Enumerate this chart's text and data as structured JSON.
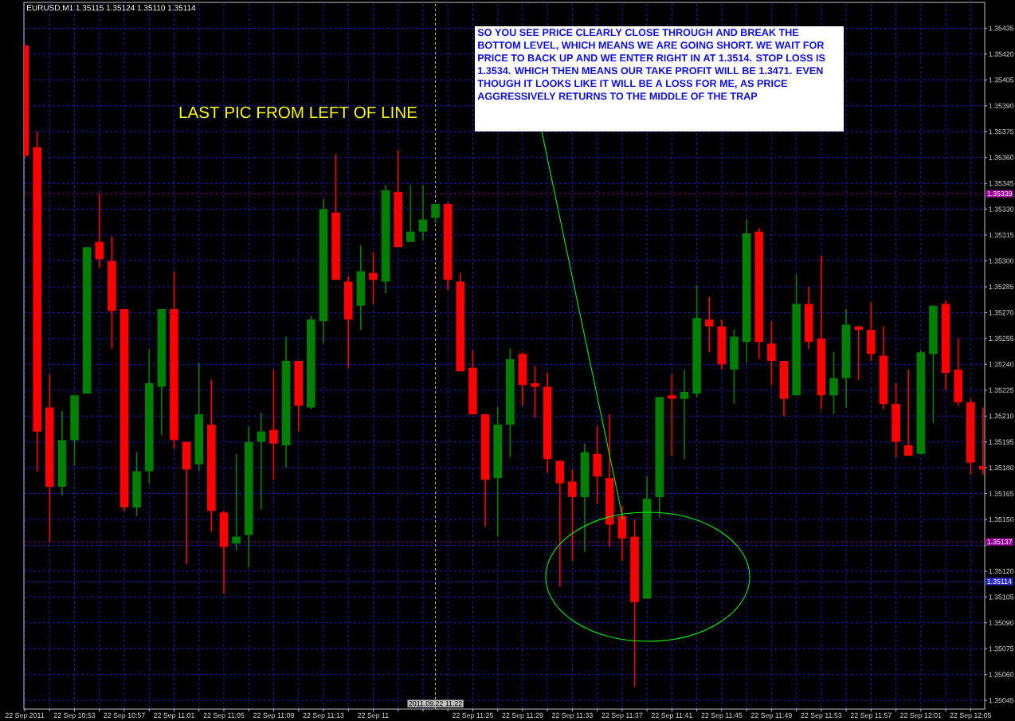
{
  "chart_data": {
    "type": "candlestick",
    "title": "EURUSD,M1 1.35115 1.35124 1.35110 1.35114",
    "x": [
      "2011-09-22T10:49",
      "2011-09-22T10:50",
      "2011-09-22T10:51",
      "2011-09-22T10:52",
      "2011-09-22T10:53",
      "2011-09-22T10:54",
      "2011-09-22T10:55",
      "2011-09-22T10:56",
      "2011-09-22T10:57",
      "2011-09-22T10:58",
      "2011-09-22T10:59",
      "2011-09-22T11:00",
      "2011-09-22T11:01",
      "2011-09-22T11:02",
      "2011-09-22T11:03",
      "2011-09-22T11:04",
      "2011-09-22T11:05",
      "2011-09-22T11:06",
      "2011-09-22T11:07",
      "2011-09-22T11:08",
      "2011-09-22T11:09",
      "2011-09-22T11:10",
      "2011-09-22T11:11",
      "2011-09-22T11:12",
      "2011-09-22T11:13",
      "2011-09-22T11:14",
      "2011-09-22T11:15",
      "2011-09-22T11:16",
      "2011-09-22T11:17",
      "2011-09-22T11:18",
      "2011-09-22T11:19",
      "2011-09-22T11:20",
      "2011-09-22T11:21",
      "2011-09-22T11:22",
      "2011-09-22T11:23",
      "2011-09-22T11:24",
      "2011-09-22T11:25",
      "2011-09-22T11:26",
      "2011-09-22T11:27",
      "2011-09-22T11:28",
      "2011-09-22T11:29",
      "2011-09-22T11:30",
      "2011-09-22T11:31",
      "2011-09-22T11:32",
      "2011-09-22T11:33",
      "2011-09-22T11:34",
      "2011-09-22T11:35",
      "2011-09-22T11:36",
      "2011-09-22T11:37",
      "2011-09-22T11:38",
      "2011-09-22T11:39",
      "2011-09-22T11:40",
      "2011-09-22T11:41",
      "2011-09-22T11:42",
      "2011-09-22T11:43",
      "2011-09-22T11:44",
      "2011-09-22T11:45",
      "2011-09-22T11:46",
      "2011-09-22T11:47",
      "2011-09-22T11:48",
      "2011-09-22T11:49",
      "2011-09-22T11:50",
      "2011-09-22T11:51",
      "2011-09-22T11:52",
      "2011-09-22T11:53",
      "2011-09-22T11:54",
      "2011-09-22T11:55",
      "2011-09-22T11:56",
      "2011-09-22T11:57",
      "2011-09-22T11:58",
      "2011-09-22T11:59",
      "2011-09-22T12:00",
      "2011-09-22T12:01",
      "2011-09-22T12:02",
      "2011-09-22T12:03",
      "2011-09-22T12:04",
      "2011-09-22T12:05",
      "2011-09-22T12:06"
    ],
    "ohlc": [
      [
        1.35425,
        1.35425,
        1.3536,
        1.35361
      ],
      [
        1.35366,
        1.35375,
        1.35178,
        1.35201
      ],
      [
        1.35215,
        1.35234,
        1.35137,
        1.35169
      ],
      [
        1.35169,
        1.35213,
        1.35164,
        1.35196
      ],
      [
        1.35196,
        1.35222,
        1.35181,
        1.35222
      ],
      [
        1.35223,
        1.35308,
        1.35223,
        1.35308
      ],
      [
        1.35311,
        1.35339,
        1.35296,
        1.35301
      ],
      [
        1.353,
        1.35314,
        1.35249,
        1.35271
      ],
      [
        1.35272,
        1.35272,
        1.35155,
        1.35157
      ],
      [
        1.35157,
        1.35189,
        1.35152,
        1.35178
      ],
      [
        1.35178,
        1.35249,
        1.35171,
        1.35229
      ],
      [
        1.35227,
        1.35272,
        1.35199,
        1.35272
      ],
      [
        1.35272,
        1.35294,
        1.35191,
        1.35196
      ],
      [
        1.35195,
        1.35195,
        1.35124,
        1.35179
      ],
      [
        1.35182,
        1.35241,
        1.35178,
        1.35211
      ],
      [
        1.35205,
        1.35231,
        1.35143,
        1.35155
      ],
      [
        1.35154,
        1.35155,
        1.35107,
        1.35134
      ],
      [
        1.35136,
        1.35188,
        1.35132,
        1.3514
      ],
      [
        1.35141,
        1.35204,
        1.35122,
        1.35195
      ],
      [
        1.35195,
        1.35212,
        1.35156,
        1.35201
      ],
      [
        1.35202,
        1.35237,
        1.35173,
        1.35194
      ],
      [
        1.35193,
        1.35256,
        1.3518,
        1.35242
      ],
      [
        1.35242,
        1.35242,
        1.35201,
        1.35216
      ],
      [
        1.35215,
        1.35268,
        1.35214,
        1.35266
      ],
      [
        1.35265,
        1.35336,
        1.35252,
        1.3533
      ],
      [
        1.35328,
        1.35362,
        1.35289,
        1.35289
      ],
      [
        1.35288,
        1.35291,
        1.35238,
        1.35266
      ],
      [
        1.35274,
        1.35309,
        1.3526,
        1.35294
      ],
      [
        1.35293,
        1.35305,
        1.35275,
        1.35289
      ],
      [
        1.35288,
        1.35344,
        1.35281,
        1.35341
      ],
      [
        1.3534,
        1.35364,
        1.35308,
        1.35308
      ],
      [
        1.35311,
        1.35344,
        1.35311,
        1.35317
      ],
      [
        1.35317,
        1.35344,
        1.35312,
        1.35324
      ],
      [
        1.35325,
        1.35333,
        1.35322,
        1.35333
      ],
      [
        1.35333,
        1.35334,
        1.35283,
        1.35289
      ],
      [
        1.35288,
        1.35293,
        1.35236,
        1.35236
      ],
      [
        1.35238,
        1.35248,
        1.35211,
        1.35211
      ],
      [
        1.35211,
        1.35211,
        1.35146,
        1.35173
      ],
      [
        1.35174,
        1.35215,
        1.3514,
        1.35205
      ],
      [
        1.35205,
        1.35249,
        1.35186,
        1.35243
      ],
      [
        1.35246,
        1.35247,
        1.35216,
        1.35228
      ],
      [
        1.35229,
        1.35239,
        1.35209,
        1.35227
      ],
      [
        1.35227,
        1.35235,
        1.35177,
        1.35185
      ],
      [
        1.35184,
        1.35184,
        1.35111,
        1.35171
      ],
      [
        1.35172,
        1.35179,
        1.35126,
        1.35163
      ],
      [
        1.35163,
        1.35194,
        1.35131,
        1.35189
      ],
      [
        1.35188,
        1.35204,
        1.35159,
        1.35175
      ],
      [
        1.35174,
        1.35211,
        1.35134,
        1.35147
      ],
      [
        1.35152,
        1.35158,
        1.35126,
        1.35139
      ],
      [
        1.3514,
        1.3515,
        1.35053,
        1.35102
      ],
      [
        1.35104,
        1.35175,
        1.35104,
        1.35162
      ],
      [
        1.35163,
        1.35221,
        1.35151,
        1.35221
      ],
      [
        1.35222,
        1.35234,
        1.35187,
        1.3522
      ],
      [
        1.3522,
        1.35237,
        1.35185,
        1.35224
      ],
      [
        1.35223,
        1.35286,
        1.35221,
        1.35267
      ],
      [
        1.35266,
        1.35279,
        1.35247,
        1.35262
      ],
      [
        1.35262,
        1.35266,
        1.35237,
        1.3524
      ],
      [
        1.35237,
        1.3526,
        1.35217,
        1.35256
      ],
      [
        1.35253,
        1.35324,
        1.35241,
        1.35316
      ],
      [
        1.35317,
        1.35319,
        1.35243,
        1.35253
      ],
      [
        1.35252,
        1.35265,
        1.35228,
        1.35242
      ],
      [
        1.35242,
        1.35242,
        1.3521,
        1.3522
      ],
      [
        1.35222,
        1.35292,
        1.35222,
        1.35275
      ],
      [
        1.35275,
        1.35285,
        1.35249,
        1.35253
      ],
      [
        1.35255,
        1.35303,
        1.35214,
        1.35222
      ],
      [
        1.35222,
        1.35247,
        1.35211,
        1.35232
      ],
      [
        1.35232,
        1.35272,
        1.35215,
        1.35263
      ],
      [
        1.35262,
        1.35262,
        1.35231,
        1.3526
      ],
      [
        1.3526,
        1.35276,
        1.35242,
        1.35246
      ],
      [
        1.35245,
        1.35262,
        1.35214,
        1.35217
      ],
      [
        1.35217,
        1.35229,
        1.35186,
        1.35195
      ],
      [
        1.35193,
        1.35237,
        1.35187,
        1.35187
      ],
      [
        1.35188,
        1.35248,
        1.35188,
        1.35247
      ],
      [
        1.35246,
        1.35274,
        1.35206,
        1.35274
      ],
      [
        1.35275,
        1.35277,
        1.35225,
        1.35235
      ],
      [
        1.35237,
        1.35255,
        1.35216,
        1.35218
      ],
      [
        1.35218,
        1.3522,
        1.35176,
        1.35183
      ],
      [
        1.35181,
        1.35215,
        1.35176,
        1.35179
      ]
    ],
    "colors": [
      "#ff0000",
      "#ff0000",
      "#ff0000",
      "#008000",
      "#008000",
      "#008000",
      "#ff0000",
      "#ff0000",
      "#ff0000",
      "#008000",
      "#008000",
      "#008000",
      "#ff0000",
      "#ff0000",
      "#008000",
      "#ff0000",
      "#ff0000",
      "#008000",
      "#008000",
      "#008000",
      "#ff0000",
      "#008000",
      "#ff0000",
      "#008000",
      "#008000",
      "#ff0000",
      "#ff0000",
      "#008000",
      "#ff0000",
      "#008000",
      "#ff0000",
      "#008000",
      "#008000",
      "#008000",
      "#ff0000",
      "#ff0000",
      "#ff0000",
      "#ff0000",
      "#008000",
      "#008000",
      "#ff0000",
      "#ff0000",
      "#ff0000",
      "#ff0000",
      "#ff0000",
      "#008000",
      "#ff0000",
      "#ff0000",
      "#ff0000",
      "#ff0000",
      "#008000",
      "#008000",
      "#ff0000",
      "#008000",
      "#008000",
      "#ff0000",
      "#ff0000",
      "#008000",
      "#008000",
      "#ff0000",
      "#ff0000",
      "#ff0000",
      "#008000",
      "#ff0000",
      "#ff0000",
      "#008000",
      "#008000",
      "#ff0000",
      "#ff0000",
      "#ff0000",
      "#ff0000",
      "#ff0000",
      "#008000",
      "#008000",
      "#ff0000",
      "#ff0000",
      "#ff0000",
      "#ff0000"
    ],
    "xlim": [
      "2011-09-22T10:48:56",
      "2011-09-22T12:06:08"
    ],
    "ylim": [
      1.3504,
      1.3545
    ],
    "xticks": [
      {
        "value": "2011-09-22T10:49",
        "label": "22 Sep 2011"
      },
      {
        "value": "2011-09-22T10:51",
        "label": null
      },
      {
        "value": "2011-09-22T10:53",
        "label": "22 Sep 10:53"
      },
      {
        "value": "2011-09-22T10:55",
        "label": null
      },
      {
        "value": "2011-09-22T10:57",
        "label": "22 Sep 10:57"
      },
      {
        "value": "2011-09-22T10:59",
        "label": null
      },
      {
        "value": "2011-09-22T11:01",
        "label": "22 Sep 11:01"
      },
      {
        "value": "2011-09-22T11:03",
        "label": null
      },
      {
        "value": "2011-09-22T11:05",
        "label": "22 Sep 11:05"
      },
      {
        "value": "2011-09-22T11:07",
        "label": null
      },
      {
        "value": "2011-09-22T11:09",
        "label": "22 Sep 11:09"
      },
      {
        "value": "2011-09-22T11:11",
        "label": null
      },
      {
        "value": "2011-09-22T11:13",
        "label": "22 Sep 11:13"
      },
      {
        "value": "2011-09-22T11:15",
        "label": null
      },
      {
        "value": "2011-09-22T11:17",
        "label": "22 Sep 11"
      },
      {
        "value": "2011-09-22T11:19",
        "label": null
      },
      {
        "value": "2011-09-22T11:21",
        "label": null
      },
      {
        "value": "2011-09-22T11:23",
        "label": null
      },
      {
        "value": "2011-09-22T11:25",
        "label": "22 Sep 11:25"
      },
      {
        "value": "2011-09-22T11:27",
        "label": null
      },
      {
        "value": "2011-09-22T11:29",
        "label": "22 Sep 11:29"
      },
      {
        "value": "2011-09-22T11:31",
        "label": null
      },
      {
        "value": "2011-09-22T11:33",
        "label": "22 Sep 11:33"
      },
      {
        "value": "2011-09-22T11:35",
        "label": null
      },
      {
        "value": "2011-09-22T11:37",
        "label": "22 Sep 11:37"
      },
      {
        "value": "2011-09-22T11:39",
        "label": null
      },
      {
        "value": "2011-09-22T11:41",
        "label": "22 Sep 11:41"
      },
      {
        "value": "2011-09-22T11:43",
        "label": null
      },
      {
        "value": "2011-09-22T11:45",
        "label": "22 Sep 11:45"
      },
      {
        "value": "2011-09-22T11:47",
        "label": null
      },
      {
        "value": "2011-09-22T11:49",
        "label": "22 Sep 11:49"
      },
      {
        "value": "2011-09-22T11:51",
        "label": null
      },
      {
        "value": "2011-09-22T11:53",
        "label": "22 Sep 11:53"
      },
      {
        "value": "2011-09-22T11:55",
        "label": null
      },
      {
        "value": "2011-09-22T11:57",
        "label": "22 Sep 11:57"
      },
      {
        "value": "2011-09-22T11:59",
        "label": null
      },
      {
        "value": "2011-09-22T12:01",
        "label": "22 Sep 12:01"
      },
      {
        "value": "2011-09-22T12:03",
        "label": null
      },
      {
        "value": "2011-09-22T12:05",
        "label": "22 Sep 12:05"
      }
    ],
    "yticks": [
      {
        "value": 1.35045,
        "label": "1.35045"
      },
      {
        "value": 1.3506,
        "label": "1.35060"
      },
      {
        "value": 1.35075,
        "label": "1.35075"
      },
      {
        "value": 1.3509,
        "label": "1.35090"
      },
      {
        "value": 1.35105,
        "label": "1.35105"
      },
      {
        "value": 1.3512,
        "label": "1.35120"
      },
      {
        "value": 1.35135,
        "label": null
      },
      {
        "value": 1.3515,
        "label": "1.35150"
      },
      {
        "value": 1.35165,
        "label": "1.35165"
      },
      {
        "value": 1.3518,
        "label": "1.35180"
      },
      {
        "value": 1.35195,
        "label": "1.35195"
      },
      {
        "value": 1.3521,
        "label": "1.35210"
      },
      {
        "value": 1.35225,
        "label": "1.35225"
      },
      {
        "value": 1.3524,
        "label": "1.35240"
      },
      {
        "value": 1.35255,
        "label": "1.35255"
      },
      {
        "value": 1.3527,
        "label": "1.35270"
      },
      {
        "value": 1.35285,
        "label": "1.35285"
      },
      {
        "value": 1.353,
        "label": "1.35300"
      },
      {
        "value": 1.35315,
        "label": "1.35315"
      },
      {
        "value": 1.3533,
        "label": "1.35330"
      },
      {
        "value": 1.35345,
        "label": "1.35345"
      },
      {
        "value": 1.3536,
        "label": "1.35360"
      },
      {
        "value": 1.35375,
        "label": "1.35375"
      },
      {
        "value": 1.3539,
        "label": "1.35390"
      },
      {
        "value": 1.35405,
        "label": "1.35405"
      },
      {
        "value": 1.3542,
        "label": "1.35420"
      },
      {
        "value": 1.35435,
        "label": "1.35435"
      }
    ],
    "grid": true,
    "ref_lines": [
      {
        "axis": "y",
        "value": 1.35339,
        "label": "1.35339",
        "color": "#990099",
        "line_style": "dashed"
      },
      {
        "axis": "y",
        "value": 1.35137,
        "label": "1.35137",
        "color": "#990099",
        "line_style": "dashed"
      },
      {
        "axis": "y",
        "value": 1.35114,
        "label": "1.35114",
        "color": "#2828c8",
        "line_style": "solid"
      },
      {
        "axis": "x",
        "value": "2011-09-22T11:22",
        "label": "2011.09.22 11:22",
        "color": "#c0c0c0",
        "line_style": "dashed"
      }
    ],
    "annotations": [
      "SO YOU SEE PRICE CLEARLY CLOSE THROUGH AND BREAK THE BOTTOM LEVEL, WHICH MEANS WE ARE GOING SHORT. WE WAIT FOR PRICE TO BACK UP AND WE ENTER RIGHT IN AT 1.3514. STOP LOSS IS 1.3534. WHICH THEN MEANS OUR TAKE PROFIT WILL BE 1.3471. EVEN THOUGH IT LOOKS LIKE IT WILL BE A LOSS FOR ME, AS PRICE AGGRESSIVELY RETURNS TO THE MIDDLE OF THE TRAP",
      "LAST PIC FROM LEFT OF LINE"
    ]
  }
}
